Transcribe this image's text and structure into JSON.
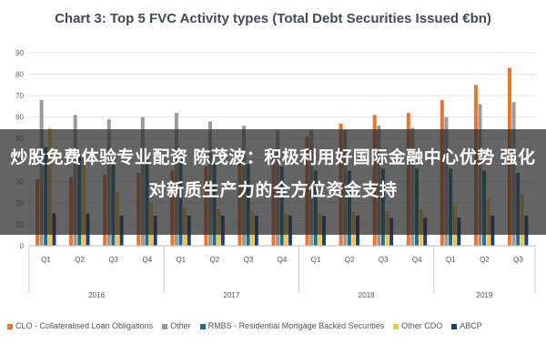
{
  "chart_data": {
    "type": "bar",
    "title": "Chart 3: Top 5 FVC Activity types (Total Debt Securities Issued €bn)",
    "ylim": [
      0,
      90
    ],
    "yticks": [
      0,
      10,
      20,
      30,
      40,
      50,
      60,
      70,
      80,
      90
    ],
    "grid": true,
    "legend_position": "bottom",
    "categories": [
      "Q1",
      "Q2",
      "Q3",
      "Q4",
      "Q1",
      "Q2",
      "Q3",
      "Q4",
      "Q1",
      "Q2",
      "Q3",
      "Q4",
      "Q1",
      "Q2",
      "Q3"
    ],
    "years": [
      {
        "label": "2016",
        "start": 0,
        "count": 4
      },
      {
        "label": "2017",
        "start": 4,
        "count": 4
      },
      {
        "label": "2018",
        "start": 8,
        "count": 4
      },
      {
        "label": "2019",
        "start": 12,
        "count": 3
      }
    ],
    "series": [
      {
        "name": "CLO - Collateralised Loan Obligations",
        "color": "#e8762d",
        "values": [
          31,
          32,
          33,
          34,
          35,
          37,
          40,
          44,
          51,
          57,
          61,
          62,
          68,
          75,
          83
        ]
      },
      {
        "name": "Other",
        "color": "#9a9a9a",
        "values": [
          68,
          61,
          59,
          60,
          62,
          58,
          56,
          54,
          54,
          54,
          56,
          55,
          60,
          66,
          67
        ]
      },
      {
        "name": "RMBS - Residential Mortgage Backed Securities",
        "color": "#1f6f8b",
        "values": [
          46,
          42,
          40,
          40,
          40,
          39,
          38,
          37,
          35,
          35,
          36,
          36,
          36,
          35,
          34
        ]
      },
      {
        "name": "Other CDO",
        "color": "#f5c242",
        "values": [
          55,
          41,
          25,
          20,
          18,
          17,
          16,
          15,
          15,
          16,
          16,
          17,
          19,
          22,
          24
        ]
      },
      {
        "name": "ABCP",
        "color": "#1c3f7a",
        "values": [
          15,
          15,
          14,
          14,
          14,
          14,
          14,
          14,
          14,
          14,
          13,
          13,
          13,
          14,
          14
        ]
      }
    ]
  },
  "overlay": {
    "headline": "炒股免费体验专业配资 陈茂波：积极利用好国际金融中心优势 强化对新质生产力的全方位资金支持"
  }
}
